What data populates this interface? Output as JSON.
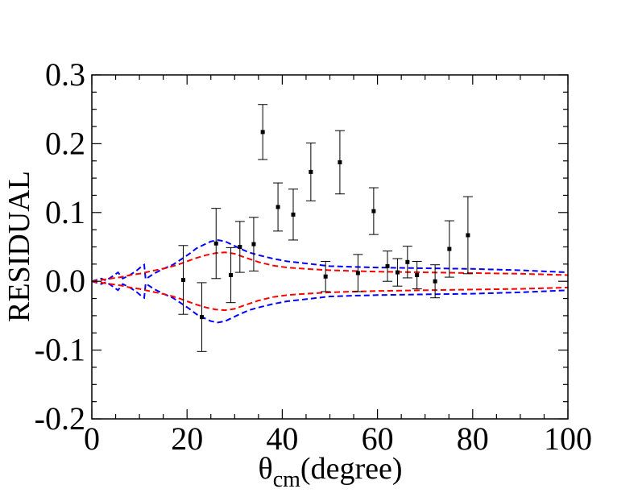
{
  "chart_data": {
    "type": "scatter",
    "title": "",
    "xlabel": {
      "symbol": "θ",
      "subscript": "cm",
      "suffix": "(degree)"
    },
    "ylabel": "RESIDUAL",
    "xlim": [
      0,
      100
    ],
    "ylim": [
      -0.2,
      0.3
    ],
    "x_ticks": [
      "0",
      "20",
      "40",
      "60",
      "80",
      "100"
    ],
    "y_ticks": [
      "-0.2",
      "-0.1",
      "0.0",
      "0.1",
      "0.2",
      "0.3"
    ],
    "grid": false,
    "legend": "none",
    "points": {
      "color": "#000000",
      "x": [
        19.2,
        23.1,
        26.1,
        29.2,
        31.1,
        34.0,
        35.9,
        39.1,
        42.3,
        46.0,
        49.1,
        52.1,
        55.9,
        59.2,
        62.1,
        64.2,
        66.3,
        68.3,
        72.1,
        75.1,
        79.0
      ],
      "y": [
        0.002,
        -0.052,
        0.055,
        0.009,
        0.05,
        0.054,
        0.217,
        0.108,
        0.097,
        0.159,
        0.007,
        0.173,
        0.012,
        0.102,
        0.022,
        0.013,
        0.028,
        0.009,
        0.0,
        0.047,
        0.067
      ],
      "err": [
        0.05,
        0.05,
        0.051,
        0.04,
        0.037,
        0.039,
        0.04,
        0.035,
        0.037,
        0.042,
        0.022,
        0.046,
        0.027,
        0.034,
        0.022,
        0.02,
        0.023,
        0.02,
        0.024,
        0.041,
        0.056
      ]
    },
    "bands": [
      {
        "color": "#0000ff",
        "x": [
          0,
          2,
          3,
          4.5,
          5.5,
          6.5,
          8,
          9.5,
          10.5,
          11,
          11.3,
          13,
          15,
          17,
          19,
          20.5,
          22,
          23.5,
          25,
          26.5,
          28,
          29.5,
          31,
          33,
          35,
          38,
          41,
          45,
          50,
          55,
          60,
          70,
          80,
          90,
          100
        ],
        "upper": [
          0,
          0.004,
          0.001,
          0.008,
          0.013,
          0.004,
          0.009,
          0.016,
          0.022,
          0.024,
          0.003,
          0.011,
          0.018,
          0.024,
          0.033,
          0.04,
          0.048,
          0.053,
          0.058,
          0.06,
          0.058,
          0.053,
          0.048,
          0.042,
          0.038,
          0.033,
          0.029,
          0.026,
          0.022,
          0.021,
          0.02,
          0.019,
          0.018,
          0.016,
          0.013
        ],
        "lower": [
          0,
          -0.004,
          -0.001,
          -0.008,
          -0.013,
          -0.004,
          -0.009,
          -0.016,
          -0.022,
          -0.024,
          -0.003,
          -0.011,
          -0.018,
          -0.024,
          -0.033,
          -0.04,
          -0.048,
          -0.053,
          -0.058,
          -0.06,
          -0.058,
          -0.053,
          -0.048,
          -0.042,
          -0.038,
          -0.033,
          -0.029,
          -0.026,
          -0.022,
          -0.021,
          -0.02,
          -0.019,
          -0.018,
          -0.016,
          -0.013
        ]
      },
      {
        "color": "#ff0000",
        "x": [
          0,
          2,
          4,
          6,
          8,
          10,
          12,
          14,
          16,
          18,
          20,
          22,
          24,
          26,
          28,
          30,
          32,
          35,
          38,
          41,
          45,
          50,
          55,
          60,
          70,
          80,
          90,
          100
        ],
        "upper": [
          0,
          0.002,
          0.004,
          0.006,
          0.009,
          0.011,
          0.014,
          0.017,
          0.02,
          0.024,
          0.029,
          0.034,
          0.038,
          0.041,
          0.042,
          0.04,
          0.035,
          0.028,
          0.023,
          0.02,
          0.018,
          0.016,
          0.015,
          0.014,
          0.013,
          0.012,
          0.011,
          0.009
        ],
        "lower": [
          0,
          -0.002,
          -0.004,
          -0.006,
          -0.009,
          -0.011,
          -0.014,
          -0.017,
          -0.02,
          -0.024,
          -0.029,
          -0.034,
          -0.038,
          -0.041,
          -0.042,
          -0.04,
          -0.035,
          -0.028,
          -0.023,
          -0.02,
          -0.018,
          -0.016,
          -0.015,
          -0.014,
          -0.013,
          -0.012,
          -0.011,
          -0.009
        ]
      }
    ]
  }
}
